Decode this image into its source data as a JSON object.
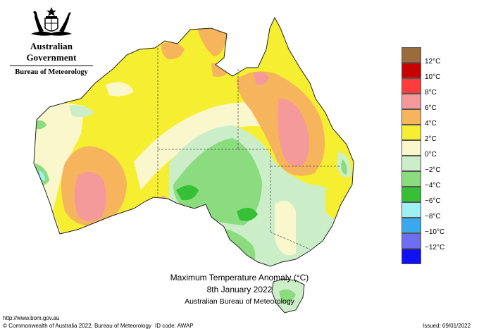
{
  "header": {
    "gov_name": "Australian Government",
    "bureau_name": "Bureau of Meteorology"
  },
  "legend": {
    "items": [
      {
        "label": "12°C",
        "color": "#9a6c3c"
      },
      {
        "label": "10°C",
        "color": "#c80000"
      },
      {
        "label": "8°C",
        "color": "#ff3c3c"
      },
      {
        "label": "6°C",
        "color": "#f59a9a"
      },
      {
        "label": "4°C",
        "color": "#f6b45c"
      },
      {
        "label": "2°C",
        "color": "#f6ee30"
      },
      {
        "label": "0°C",
        "color": "#fbf7cc"
      },
      {
        "label": "−2°C",
        "color": "#cbeec9"
      },
      {
        "label": "−4°C",
        "color": "#8adc7e"
      },
      {
        "label": "−6°C",
        "color": "#36c036"
      },
      {
        "label": "−8°C",
        "color": "#9ff0f4"
      },
      {
        "label": "−10°C",
        "color": "#3aa8ee"
      },
      {
        "label": "−12°C",
        "color": "#6e6ef0"
      },
      {
        "label": "",
        "color": "#1010f5"
      }
    ]
  },
  "title": {
    "line1": "Maximum Temperature Anomaly (°C)",
    "line2": "8th January 2022",
    "line3": "Australian Bureau of Meteorology"
  },
  "footer": {
    "url": "http://www.bom.gov.au",
    "copyright": "© Commonwealth of Australia 2022, Bureau of Meteorology",
    "id_code": "ID code: AWAP",
    "issued": "Issued: 09/01/2022"
  }
}
